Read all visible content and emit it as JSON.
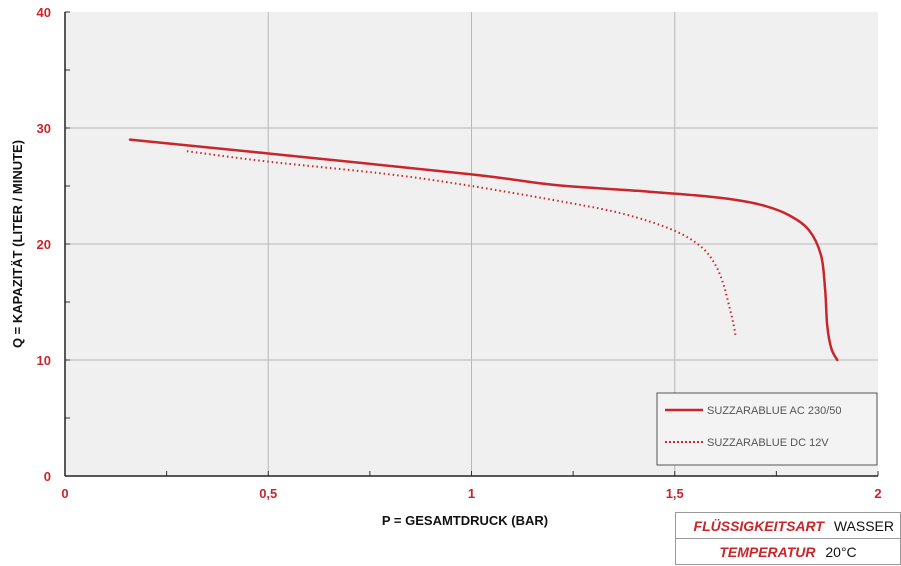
{
  "chart_data": {
    "type": "line",
    "title": "",
    "xlabel": "P = GESAMTDRUCK (BAR)",
    "ylabel": "Q = KAPAZITÄT (LITER / MINUTE)",
    "xlim": [
      0,
      2
    ],
    "ylim": [
      0,
      40
    ],
    "x_ticks": [
      0,
      0.5,
      1,
      1.5,
      2
    ],
    "x_tick_labels": [
      "0",
      "0,5",
      "1",
      "1,5",
      "2"
    ],
    "y_ticks": [
      0,
      10,
      20,
      30,
      40
    ],
    "y_tick_labels": [
      "0",
      "10",
      "20",
      "30",
      "40"
    ],
    "grid": true,
    "legend_position": "bottom-right",
    "series": [
      {
        "name": "SUZZARABLUE AC 230/50",
        "style": "solid",
        "color": "#c9262c",
        "points": [
          [
            0.16,
            29
          ],
          [
            0.5,
            27.8
          ],
          [
            1.0,
            26
          ],
          [
            1.2,
            25.1
          ],
          [
            1.4,
            24.6
          ],
          [
            1.55,
            24.2
          ],
          [
            1.65,
            23.8
          ],
          [
            1.72,
            23.3
          ],
          [
            1.78,
            22.5
          ],
          [
            1.83,
            21.2
          ],
          [
            1.86,
            19
          ],
          [
            1.87,
            16
          ],
          [
            1.875,
            13
          ],
          [
            1.885,
            11
          ],
          [
            1.9,
            10
          ]
        ]
      },
      {
        "name": "SUZZARABLUE DC 12V",
        "style": "dotted",
        "color": "#c9262c",
        "points": [
          [
            0.3,
            28
          ],
          [
            0.5,
            27.1
          ],
          [
            0.8,
            26
          ],
          [
            1.0,
            25
          ],
          [
            1.2,
            23.8
          ],
          [
            1.35,
            22.8
          ],
          [
            1.45,
            21.8
          ],
          [
            1.52,
            20.8
          ],
          [
            1.57,
            19.6
          ],
          [
            1.6,
            18.2
          ],
          [
            1.62,
            16.5
          ],
          [
            1.635,
            14.5
          ],
          [
            1.645,
            13
          ],
          [
            1.65,
            12
          ]
        ]
      }
    ]
  },
  "info_table": {
    "rows": [
      {
        "label": "FLÜSSIGKEITSART",
        "value": "WASSER"
      },
      {
        "label": "TEMPERATUR",
        "value": "20°C"
      }
    ]
  }
}
